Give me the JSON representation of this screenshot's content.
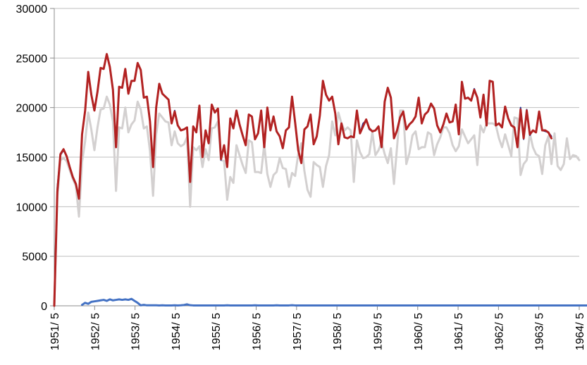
{
  "chart_data": {
    "type": "line",
    "title": "",
    "xlabel": "",
    "ylabel": "",
    "ylim": [
      0,
      30000
    ],
    "yticks": [
      "0",
      "5000",
      "10000",
      "15000",
      "20000",
      "25000",
      "30000"
    ],
    "x_tick_labels": [
      "1951/ 5",
      "1952/ 5",
      "1953/ 5",
      "1954/ 5",
      "1955/ 5",
      "1956/ 5",
      "1957/ 5",
      "1958/ 5",
      "1959/ 5",
      "1960/ 5",
      "1961/ 5",
      "1962/ 5",
      "1963/ 5",
      "1964/ 5"
    ],
    "grid": "horizontal",
    "legend": "none",
    "x_start": "1951-05",
    "x_step": "month",
    "colors": {
      "series1": "#4472c4",
      "series2": "#1f2f8f",
      "series3": "#b22222",
      "series4": "#d3d0d0",
      "grid": "#bfbfbf",
      "axis": "#8c8c8c"
    },
    "series": [
      {
        "color": "#d3d0d0",
        "stroke_width": 3,
        "values": [
          0,
          11000,
          14700,
          14900,
          14600,
          13700,
          12800,
          12100,
          9000,
          14500,
          16600,
          19500,
          17800,
          15700,
          18000,
          19800,
          19900,
          21100,
          20300,
          18600,
          11600,
          18000,
          17900,
          20000,
          17500,
          18300,
          18700,
          20600,
          19800,
          17900,
          18100,
          15600,
          11100,
          17300,
          19400,
          19000,
          18600,
          18500,
          16200,
          17600,
          16400,
          16100,
          16300,
          17000,
          10000,
          16000,
          15700,
          16100,
          14000,
          15800,
          14700,
          17900,
          18000,
          18600,
          14700,
          14600,
          10700,
          13000,
          12400,
          16200,
          15200,
          14200,
          13400,
          16700,
          16500,
          13500,
          13500,
          13400,
          16300,
          13300,
          12000,
          13200,
          13500,
          14900,
          13900,
          13800,
          12000,
          13400,
          13100,
          15300,
          16400,
          13600,
          11700,
          11000,
          14500,
          14200,
          14000,
          12000,
          14100,
          15200,
          18600,
          17200,
          19500,
          18400,
          17700,
          18000,
          17700,
          12500,
          16700,
          15500,
          14900,
          15000,
          15300,
          17500,
          15200,
          15700,
          16500,
          15300,
          14400,
          15900,
          12300,
          16000,
          19700,
          19700,
          14300,
          15400,
          17200,
          17600,
          15800,
          16000,
          16000,
          17500,
          17300,
          15200,
          16300,
          17000,
          18000,
          18000,
          17400,
          16200,
          15600,
          16100,
          17800,
          17100,
          16400,
          16800,
          17200,
          14200,
          18200,
          17500,
          18400,
          18400,
          18400,
          18200,
          16900,
          16000,
          17300,
          16200,
          15100,
          19000,
          18900,
          13200,
          14300,
          14700,
          17400,
          16000,
          15300,
          15100,
          13300,
          16200,
          17100,
          14300,
          17400,
          14100,
          13700,
          14300,
          16900,
          14800,
          15200,
          15100,
          14700
        ]
      },
      {
        "color": "#4472c4",
        "stroke_width": 3,
        "values": [
          null,
          null,
          null,
          null,
          null,
          null,
          null,
          null,
          null,
          100,
          300,
          200,
          400,
          450,
          500,
          550,
          600,
          500,
          650,
          550,
          600,
          650,
          600,
          650,
          600,
          700,
          500,
          300,
          50,
          100,
          50,
          50,
          50,
          50,
          40,
          50,
          40,
          40,
          40,
          50,
          40,
          50,
          80,
          150,
          60,
          40,
          40,
          40,
          40,
          40,
          40,
          40,
          40,
          40,
          40,
          40,
          50,
          40,
          40,
          40,
          40,
          40,
          40,
          40,
          40,
          50,
          40,
          40,
          40,
          40,
          40,
          40,
          50,
          40,
          40,
          40,
          40,
          60,
          40,
          40,
          40,
          40,
          40,
          40,
          40,
          40,
          40,
          40,
          40,
          40,
          40,
          40,
          40,
          40,
          40,
          40,
          40,
          40,
          40,
          40,
          40,
          40,
          40,
          40,
          40,
          40,
          40,
          40,
          40,
          40,
          40,
          40,
          40,
          40,
          40,
          40,
          40,
          40,
          40,
          40,
          40,
          40,
          40,
          40,
          40,
          40,
          40,
          40,
          40,
          40,
          40,
          40,
          40,
          40,
          40,
          40,
          40,
          40,
          40,
          40,
          40,
          40,
          40,
          40,
          40,
          40,
          40,
          40,
          40,
          40,
          40,
          40,
          40,
          40,
          40,
          40,
          40,
          40,
          40,
          40,
          40,
          40,
          40,
          40,
          40,
          40,
          40,
          40,
          40,
          40,
          40,
          40,
          40,
          40
        ]
      },
      {
        "color": "#1f2f8f",
        "stroke_width": 2,
        "values": [
          0,
          12000,
          15200,
          15700,
          15100,
          14000,
          13000,
          12300,
          10800,
          17300,
          19700,
          23600,
          21300,
          19700,
          21600,
          24000,
          23900,
          25400,
          24100,
          21800,
          16000,
          22100,
          22000,
          23900,
          21400,
          22700,
          22700,
          24500,
          23800,
          21000,
          21100,
          18600,
          14000,
          20000,
          22400,
          21400,
          21100,
          20800,
          18400,
          19700,
          18200,
          17700,
          17800,
          18000,
          12500,
          18100,
          17500,
          20200,
          15000,
          17700,
          16400,
          20300,
          19500,
          19900,
          14700,
          16200,
          14000,
          18900,
          17900,
          19700,
          18300,
          17200,
          16200,
          19300,
          19100,
          16800,
          17400,
          19700,
          16000,
          20000,
          17700,
          19100,
          17600,
          17100,
          15900,
          17700,
          18000,
          21100,
          18500,
          15700,
          14400,
          17800,
          18100,
          19300,
          16300,
          17100,
          19200,
          22600,
          21300,
          20700,
          21100,
          19400,
          16300,
          18400,
          17000,
          16900,
          17100,
          17000,
          19700,
          17400,
          18400,
          18700,
          17800,
          17600,
          17700,
          18100,
          16000,
          20600,
          21900,
          20900,
          16900,
          17700,
          19000,
          19600,
          17800,
          18300,
          18600,
          19100,
          21000,
          18400,
          19300,
          19600,
          20300,
          19900,
          18200,
          17500,
          18300,
          19400,
          18500,
          18600,
          20300,
          17300,
          22600,
          20900,
          21000,
          20700,
          21900,
          21000,
          19000,
          21300,
          18200,
          22700,
          22600,
          18200,
          18400,
          18000,
          20100,
          18900,
          18200,
          18000,
          16100,
          20000,
          16800,
          19800,
          17200,
          17700,
          17500,
          19500,
          17700,
          17600,
          17500,
          17100
        ]
      },
      {
        "color": "#b22222",
        "stroke_width": 3,
        "values": [
          0,
          11500,
          15300,
          15800,
          15100,
          14000,
          13000,
          12300,
          10800,
          17300,
          19700,
          23600,
          21300,
          19700,
          21600,
          24000,
          23900,
          25400,
          24100,
          21800,
          16000,
          22100,
          22000,
          23900,
          21400,
          22700,
          22700,
          24500,
          23800,
          21000,
          21100,
          18600,
          14000,
          20000,
          22400,
          21400,
          21100,
          20800,
          18400,
          19600,
          18200,
          17700,
          17800,
          18000,
          12500,
          18100,
          17500,
          20200,
          15000,
          17700,
          16400,
          20300,
          19500,
          19900,
          14800,
          16200,
          14000,
          18900,
          17900,
          19700,
          18300,
          17200,
          16200,
          19300,
          19100,
          16800,
          17400,
          19700,
          16000,
          20000,
          17700,
          19100,
          17600,
          17100,
          15900,
          17700,
          18000,
          21100,
          18500,
          15700,
          14400,
          17800,
          18100,
          19300,
          16300,
          17100,
          19200,
          22700,
          21300,
          20700,
          21100,
          19400,
          16300,
          18400,
          17000,
          16900,
          17100,
          17000,
          19700,
          17400,
          18100,
          18800,
          17900,
          17600,
          17700,
          18100,
          16000,
          20600,
          22000,
          21000,
          16900,
          17700,
          19000,
          19600,
          17800,
          18300,
          18600,
          19100,
          21000,
          18400,
          19300,
          19600,
          20400,
          19900,
          18200,
          17500,
          18300,
          19400,
          18500,
          18600,
          20300,
          17300,
          22600,
          20900,
          21000,
          20700,
          21800,
          21000,
          19000,
          21300,
          18200,
          22700,
          22600,
          18200,
          18400,
          18000,
          20100,
          18900,
          18200,
          18000,
          16000,
          19800,
          16900,
          19700,
          17300,
          17700,
          17500,
          19600,
          17700,
          17700,
          17500,
          16900
        ]
      }
    ]
  }
}
